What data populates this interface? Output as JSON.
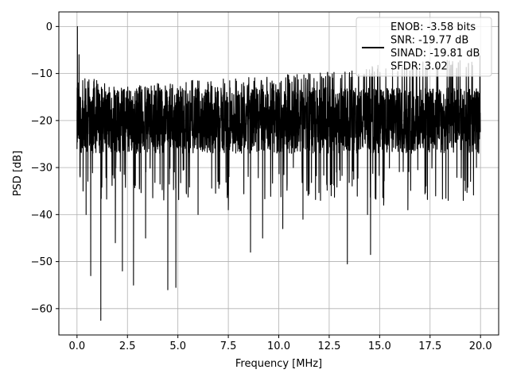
{
  "chart_data": {
    "type": "line",
    "xlabel": "Frequency [MHz]",
    "ylabel": "PSD [dB]",
    "xlim": [
      -0.9,
      20.9
    ],
    "ylim": [
      -65.6,
      3.1
    ],
    "xticks": [
      0.0,
      2.5,
      5.0,
      7.5,
      10.0,
      12.5,
      15.0,
      17.5,
      20.0
    ],
    "xtick_labels": [
      "0.0",
      "2.5",
      "5.0",
      "7.5",
      "10.0",
      "12.5",
      "15.0",
      "17.5",
      "20.0"
    ],
    "yticks": [
      0,
      -10,
      -20,
      -30,
      -40,
      -50,
      -60
    ],
    "ytick_labels": [
      "0",
      "−10",
      "−20",
      "−30",
      "−40",
      "−50",
      "−60"
    ],
    "grid": true,
    "legend": {
      "position": "top-right",
      "lines": [
        "ENOB: -3.58 bits",
        "SNR: -19.77 dB",
        "SINAD: -19.81 dB",
        "SFDR: 3.02"
      ]
    },
    "series": [
      {
        "color": "#000000",
        "noise_floor_db": -20,
        "x_range": [
          0,
          20
        ],
        "points": [
          [
            0.0,
            -26
          ],
          [
            0.02,
            0
          ],
          [
            0.05,
            -12
          ],
          [
            0.08,
            -20
          ],
          [
            0.1,
            -6
          ],
          [
            0.15,
            -15
          ],
          [
            0.3,
            -35
          ],
          [
            0.45,
            -40
          ],
          [
            0.68,
            -53
          ],
          [
            1.18,
            -62.5
          ],
          [
            1.9,
            -46
          ],
          [
            2.25,
            -52
          ],
          [
            2.8,
            -55
          ],
          [
            3.4,
            -45
          ],
          [
            4.5,
            -56
          ],
          [
            4.9,
            -55.5
          ],
          [
            6.0,
            -40
          ],
          [
            7.5,
            -39
          ],
          [
            8.6,
            -48
          ],
          [
            9.2,
            -45
          ],
          [
            10.2,
            -43
          ],
          [
            11.2,
            -41
          ],
          [
            12.6,
            -36
          ],
          [
            13.4,
            -50.5
          ],
          [
            14.55,
            -48.5
          ],
          [
            14.4,
            -40
          ],
          [
            15.2,
            -38
          ],
          [
            16.4,
            -39
          ],
          [
            18.4,
            -37
          ],
          [
            19.8,
            -30
          ]
        ],
        "upper_envelope": [
          [
            0.2,
            -12
          ],
          [
            2.0,
            -15
          ],
          [
            5.0,
            -13.5
          ],
          [
            8.0,
            -13
          ],
          [
            11.0,
            -12
          ],
          [
            13.5,
            -11.5
          ],
          [
            15.0,
            -10
          ],
          [
            17.0,
            -9.5
          ],
          [
            19.0,
            -9
          ],
          [
            20.0,
            -8
          ]
        ]
      }
    ]
  }
}
